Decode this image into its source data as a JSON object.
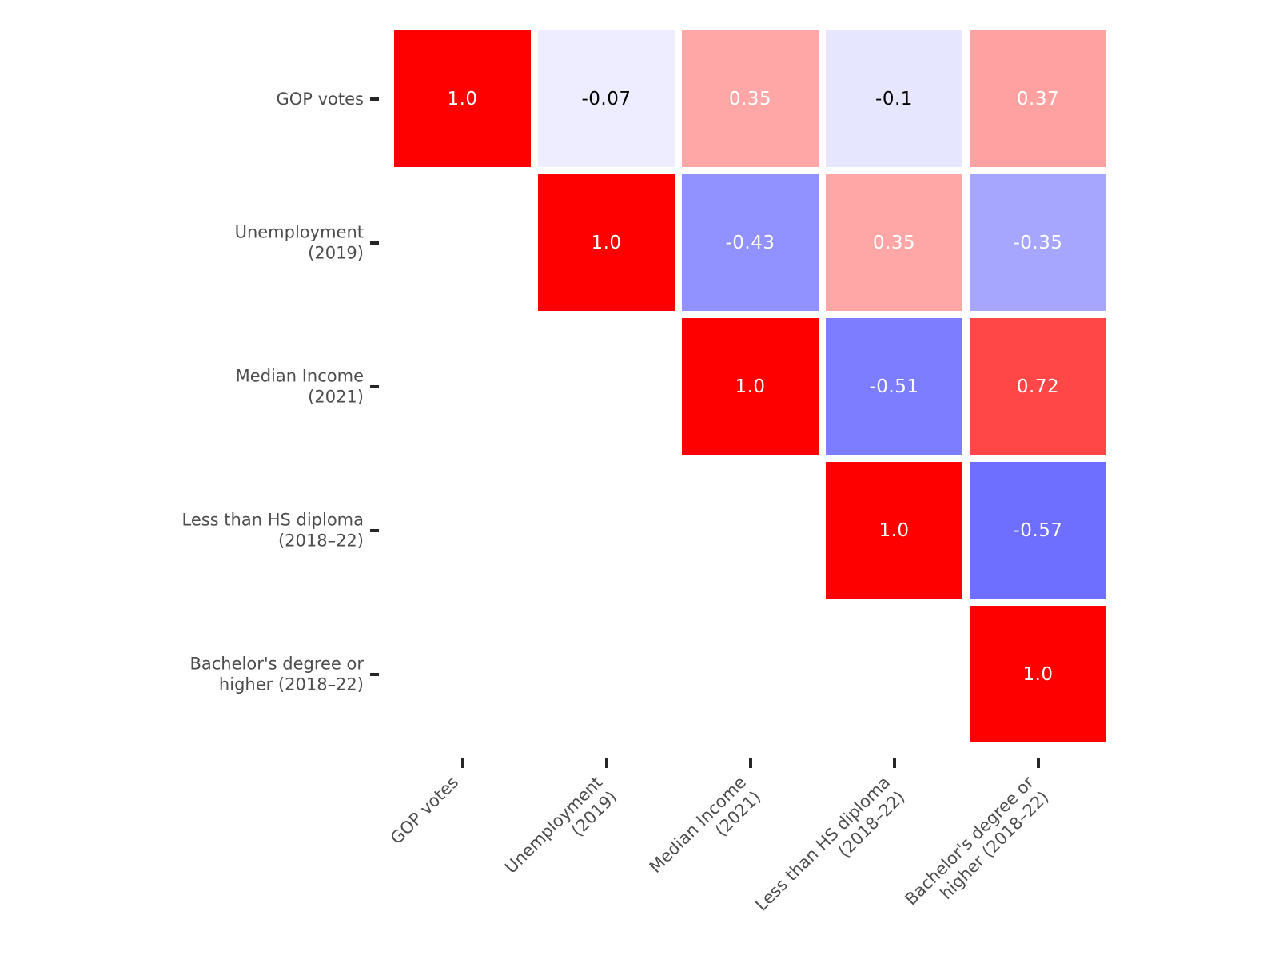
{
  "figure": {
    "background": "#ffffff",
    "label_color": "#4d4d4d",
    "tick_color": "#262626"
  },
  "chart_data": {
    "type": "heatmap",
    "subtype": "correlation-matrix-upper-triangle",
    "title": "",
    "colormap": "bwr",
    "vmin": -1,
    "vmax": 1,
    "grid": false,
    "legend": "none",
    "categories": [
      "GOP votes",
      "Unemployment (2019)",
      "Median Income (2021)",
      "Less than HS diploma (2018–22)",
      "Bachelor's degree or higher (2018–22)"
    ],
    "y_tick_labels": [
      "GOP votes",
      "Unemployment\n(2019)",
      "Median Income\n(2021)",
      "Less than HS diploma\n(2018–22)",
      "Bachelor's degree or\nhigher (2018–22)"
    ],
    "x_tick_labels": [
      "GOP votes",
      "Unemployment\n(2019)",
      "Median Income\n(2021)",
      "Less than HS diploma\n(2018–22)",
      "Bachelor's degree or\nhigher (2018–22)"
    ],
    "matrix": [
      [
        1.0,
        -0.07,
        0.35,
        -0.1,
        0.37
      ],
      [
        null,
        1.0,
        -0.43,
        0.35,
        -0.35
      ],
      [
        null,
        null,
        1.0,
        -0.51,
        0.72
      ],
      [
        null,
        null,
        null,
        1.0,
        -0.57
      ],
      [
        null,
        null,
        null,
        null,
        1.0
      ]
    ],
    "value_labels": [
      [
        "1.0",
        "-0.07",
        "0.35",
        "-0.1",
        "0.37"
      ],
      [
        null,
        "1.0",
        "-0.43",
        "0.35",
        "-0.35"
      ],
      [
        null,
        null,
        "1.0",
        "-0.51",
        "0.72"
      ],
      [
        null,
        null,
        null,
        "1.0",
        "-0.57"
      ],
      [
        null,
        null,
        null,
        null,
        "1.0"
      ]
    ],
    "value_text_colors": {
      "strong": "#ffffff",
      "weak": "#000000",
      "threshold": 0.3
    }
  }
}
